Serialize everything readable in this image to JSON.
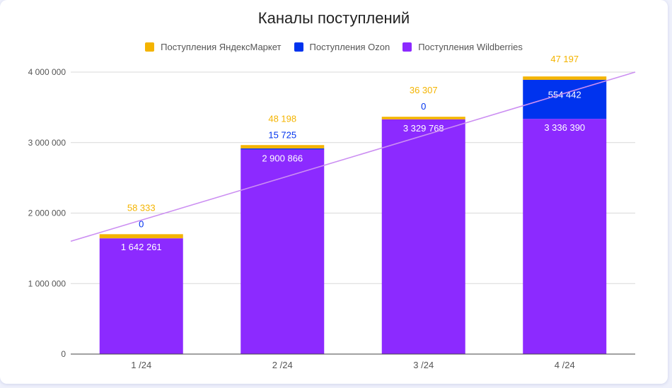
{
  "colors": {
    "yandex": "#f4b400",
    "ozon": "#0033ee",
    "wildberries": "#8c2aff",
    "trendline": "#cc8ff2",
    "grid": "#d9d9d9",
    "axis": "#444444"
  },
  "chart_data": {
    "type": "bar",
    "stacked": true,
    "title": "Каналы поступлений",
    "xlabel": "",
    "ylabel": "",
    "categories": [
      "1 /24",
      "2 /24",
      "3 /24",
      "4 /24"
    ],
    "series": [
      {
        "name": "Поступления Wildberries",
        "values": [
          1642261,
          2900866,
          3329768,
          3336390
        ],
        "labels": [
          "1 642 261",
          "2 900 866",
          "3 329 768",
          "3 336 390"
        ]
      },
      {
        "name": "Поступления Ozon",
        "values": [
          0,
          15725,
          0,
          554442
        ],
        "labels": [
          "0",
          "15 725",
          "0",
          "554 442"
        ]
      },
      {
        "name": "Поступления ЯндексМаркет",
        "values": [
          58333,
          48198,
          36307,
          47197
        ],
        "labels": [
          "58 333",
          "48 198",
          "36 307",
          "47 197"
        ]
      }
    ],
    "legend": [
      "Поступления ЯндексМаркет",
      "Поступления Ozon",
      "Поступления Wildberries"
    ],
    "legend_position": "top",
    "ylim": [
      0,
      4000000
    ],
    "yticks": [
      0,
      1000000,
      2000000,
      3000000,
      4000000
    ],
    "ytick_labels": [
      "0",
      "1 000 000",
      "2 000 000",
      "3 000 000",
      "4 000 000"
    ],
    "trendline": {
      "type": "linear",
      "start_value": 1600000,
      "end_value": 4000000
    },
    "grid": true
  }
}
